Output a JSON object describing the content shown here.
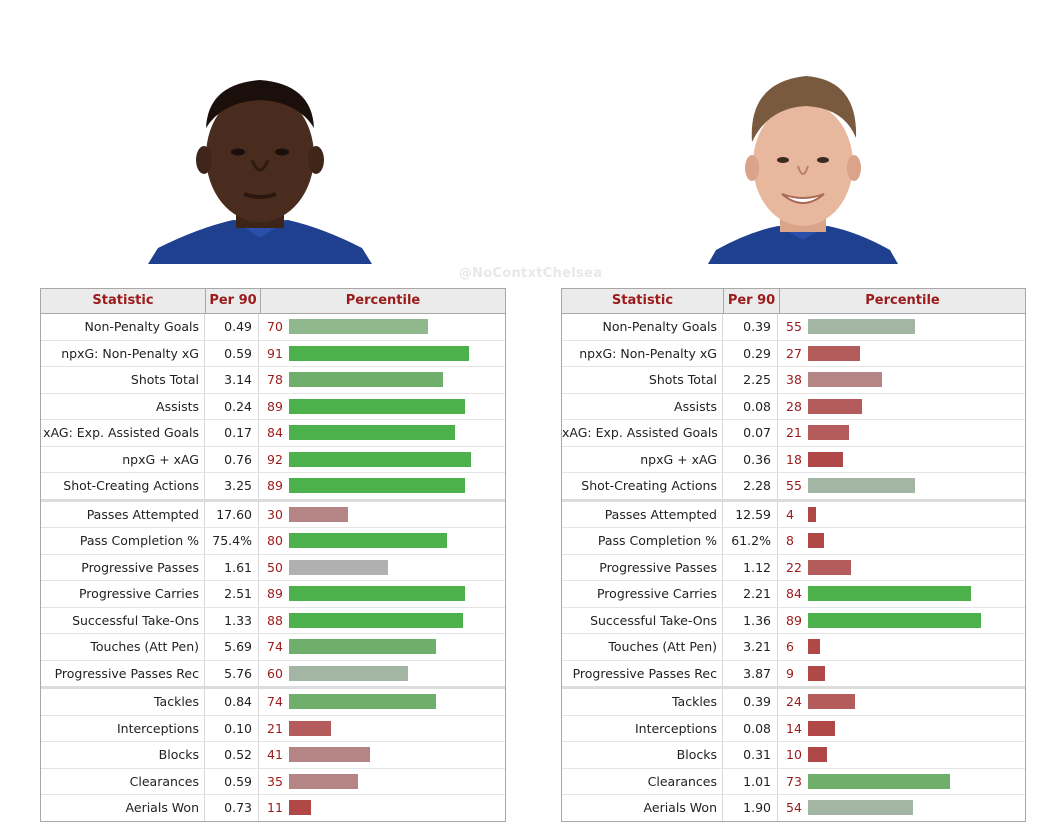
{
  "watermark": "@NoContxtChelsea",
  "headers": {
    "statistic": "Statistic",
    "per90": "Per 90",
    "percentile": "Percentile"
  },
  "colors": {
    "green": "#4cb14a",
    "green_mid": "#6fae6b",
    "green_light": "#8fb98c",
    "grey": "#b0b0b0",
    "grey_green": "#a3b5a3",
    "red_light": "#b58585",
    "red": "#b45b5b",
    "red_dark": "#b04848"
  },
  "players": [
    {
      "photo": "player-left-photo",
      "groups": [
        [
          {
            "stat": "Non-Penalty Goals",
            "per90": "0.49",
            "pct": 70,
            "color": "green_light"
          },
          {
            "stat": "npxG: Non-Penalty xG",
            "per90": "0.59",
            "pct": 91,
            "color": "green"
          },
          {
            "stat": "Shots Total",
            "per90": "3.14",
            "pct": 78,
            "color": "green_mid"
          },
          {
            "stat": "Assists",
            "per90": "0.24",
            "pct": 89,
            "color": "green"
          },
          {
            "stat": "xAG: Exp. Assisted Goals",
            "per90": "0.17",
            "pct": 84,
            "color": "green"
          },
          {
            "stat": "npxG + xAG",
            "per90": "0.76",
            "pct": 92,
            "color": "green"
          },
          {
            "stat": "Shot-Creating Actions",
            "per90": "3.25",
            "pct": 89,
            "color": "green"
          }
        ],
        [
          {
            "stat": "Passes Attempted",
            "per90": "17.60",
            "pct": 30,
            "color": "red_light"
          },
          {
            "stat": "Pass Completion %",
            "per90": "75.4%",
            "pct": 80,
            "color": "green"
          },
          {
            "stat": "Progressive Passes",
            "per90": "1.61",
            "pct": 50,
            "color": "grey"
          },
          {
            "stat": "Progressive Carries",
            "per90": "2.51",
            "pct": 89,
            "color": "green"
          },
          {
            "stat": "Successful Take-Ons",
            "per90": "1.33",
            "pct": 88,
            "color": "green"
          },
          {
            "stat": "Touches (Att Pen)",
            "per90": "5.69",
            "pct": 74,
            "color": "green_mid"
          },
          {
            "stat": "Progressive Passes Rec",
            "per90": "5.76",
            "pct": 60,
            "color": "grey_green"
          }
        ],
        [
          {
            "stat": "Tackles",
            "per90": "0.84",
            "pct": 74,
            "color": "green_mid"
          },
          {
            "stat": "Interceptions",
            "per90": "0.10",
            "pct": 21,
            "color": "red"
          },
          {
            "stat": "Blocks",
            "per90": "0.52",
            "pct": 41,
            "color": "red_light"
          },
          {
            "stat": "Clearances",
            "per90": "0.59",
            "pct": 35,
            "color": "red_light"
          },
          {
            "stat": "Aerials Won",
            "per90": "0.73",
            "pct": 11,
            "color": "red_dark"
          }
        ]
      ]
    },
    {
      "photo": "player-right-photo",
      "groups": [
        [
          {
            "stat": "Non-Penalty Goals",
            "per90": "0.39",
            "pct": 55,
            "color": "grey_green"
          },
          {
            "stat": "npxG: Non-Penalty xG",
            "per90": "0.29",
            "pct": 27,
            "color": "red"
          },
          {
            "stat": "Shots Total",
            "per90": "2.25",
            "pct": 38,
            "color": "red_light"
          },
          {
            "stat": "Assists",
            "per90": "0.08",
            "pct": 28,
            "color": "red"
          },
          {
            "stat": "xAG: Exp. Assisted Goals",
            "per90": "0.07",
            "pct": 21,
            "color": "red"
          },
          {
            "stat": "npxG + xAG",
            "per90": "0.36",
            "pct": 18,
            "color": "red_dark"
          },
          {
            "stat": "Shot-Creating Actions",
            "per90": "2.28",
            "pct": 55,
            "color": "grey_green"
          }
        ],
        [
          {
            "stat": "Passes Attempted",
            "per90": "12.59",
            "pct": 4,
            "color": "red_dark"
          },
          {
            "stat": "Pass Completion %",
            "per90": "61.2%",
            "pct": 8,
            "color": "red_dark"
          },
          {
            "stat": "Progressive Passes",
            "per90": "1.12",
            "pct": 22,
            "color": "red"
          },
          {
            "stat": "Progressive Carries",
            "per90": "2.21",
            "pct": 84,
            "color": "green"
          },
          {
            "stat": "Successful Take-Ons",
            "per90": "1.36",
            "pct": 89,
            "color": "green"
          },
          {
            "stat": "Touches (Att Pen)",
            "per90": "3.21",
            "pct": 6,
            "color": "red_dark"
          },
          {
            "stat": "Progressive Passes Rec",
            "per90": "3.87",
            "pct": 9,
            "color": "red_dark"
          }
        ],
        [
          {
            "stat": "Tackles",
            "per90": "0.39",
            "pct": 24,
            "color": "red"
          },
          {
            "stat": "Interceptions",
            "per90": "0.08",
            "pct": 14,
            "color": "red_dark"
          },
          {
            "stat": "Blocks",
            "per90": "0.31",
            "pct": 10,
            "color": "red_dark"
          },
          {
            "stat": "Clearances",
            "per90": "1.01",
            "pct": 73,
            "color": "green_mid"
          },
          {
            "stat": "Aerials Won",
            "per90": "1.90",
            "pct": 54,
            "color": "grey_green"
          }
        ]
      ]
    }
  ],
  "chart_data": [
    {
      "type": "table",
      "columns": [
        "Statistic",
        "Per 90",
        "Percentile"
      ],
      "rows": [
        [
          "Non-Penalty Goals",
          "0.49",
          70
        ],
        [
          "npxG: Non-Penalty xG",
          "0.59",
          91
        ],
        [
          "Shots Total",
          "3.14",
          78
        ],
        [
          "Assists",
          "0.24",
          89
        ],
        [
          "xAG: Exp. Assisted Goals",
          "0.17",
          84
        ],
        [
          "npxG + xAG",
          "0.76",
          92
        ],
        [
          "Shot-Creating Actions",
          "3.25",
          89
        ],
        [
          "Passes Attempted",
          "17.60",
          30
        ],
        [
          "Pass Completion %",
          "75.4%",
          80
        ],
        [
          "Progressive Passes",
          "1.61",
          50
        ],
        [
          "Progressive Carries",
          "2.51",
          89
        ],
        [
          "Successful Take-Ons",
          "1.33",
          88
        ],
        [
          "Touches (Att Pen)",
          "5.69",
          74
        ],
        [
          "Progressive Passes Rec",
          "5.76",
          60
        ],
        [
          "Tackles",
          "0.84",
          74
        ],
        [
          "Interceptions",
          "0.10",
          21
        ],
        [
          "Blocks",
          "0.52",
          41
        ],
        [
          "Clearances",
          "0.59",
          35
        ],
        [
          "Aerials Won",
          "0.73",
          11
        ]
      ],
      "percentile_range": [
        0,
        100
      ]
    },
    {
      "type": "table",
      "columns": [
        "Statistic",
        "Per 90",
        "Percentile"
      ],
      "rows": [
        [
          "Non-Penalty Goals",
          "0.39",
          55
        ],
        [
          "npxG: Non-Penalty xG",
          "0.29",
          27
        ],
        [
          "Shots Total",
          "2.25",
          38
        ],
        [
          "Assists",
          "0.08",
          28
        ],
        [
          "xAG: Exp. Assisted Goals",
          "0.07",
          21
        ],
        [
          "npxG + xAG",
          "0.36",
          18
        ],
        [
          "Shot-Creating Actions",
          "2.28",
          55
        ],
        [
          "Passes Attempted",
          "12.59",
          4
        ],
        [
          "Pass Completion %",
          "61.2%",
          8
        ],
        [
          "Progressive Passes",
          "1.12",
          22
        ],
        [
          "Progressive Carries",
          "2.21",
          84
        ],
        [
          "Successful Take-Ons",
          "1.36",
          89
        ],
        [
          "Touches (Att Pen)",
          "3.21",
          6
        ],
        [
          "Progressive Passes Rec",
          "3.87",
          9
        ],
        [
          "Tackles",
          "0.39",
          24
        ],
        [
          "Interceptions",
          "0.08",
          14
        ],
        [
          "Blocks",
          "0.31",
          10
        ],
        [
          "Clearances",
          "1.01",
          73
        ],
        [
          "Aerials Won",
          "1.90",
          54
        ]
      ],
      "percentile_range": [
        0,
        100
      ]
    }
  ]
}
